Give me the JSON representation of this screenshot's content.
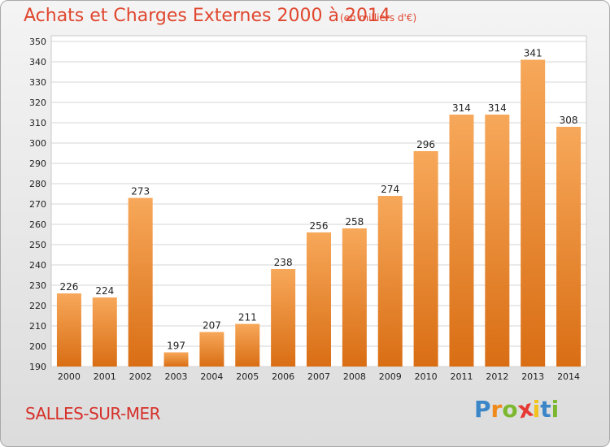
{
  "header": {
    "title": "Achats et Charges Externes 2000 à 2014",
    "unit": "(en milliers d'€)"
  },
  "footer": {
    "place": "SALLES-SUR-MER",
    "logo": {
      "letters": [
        "P",
        "r",
        "o",
        "x",
        "i",
        "t",
        "i"
      ],
      "colors": [
        "#3a86c8",
        "#f08a1c",
        "#7cb82f",
        "#e53935",
        "#f3c31a",
        "#3a86c8",
        "#7cb82f"
      ]
    }
  },
  "colors": {
    "bar_light": "#f7a85a",
    "bar_dark": "#d96e14",
    "title": "#e0472f"
  },
  "chart_data": {
    "type": "bar",
    "title": "Achats et Charges Externes 2000 à 2014",
    "subtitle": "(en milliers d'€)",
    "categories": [
      "2000",
      "2001",
      "2002",
      "2003",
      "2004",
      "2005",
      "2006",
      "2007",
      "2008",
      "2009",
      "2010",
      "2011",
      "2012",
      "2013",
      "2014"
    ],
    "values": [
      226,
      224,
      273,
      197,
      207,
      211,
      238,
      256,
      258,
      274,
      296,
      314,
      314,
      341,
      308
    ],
    "ylim": [
      190,
      350
    ],
    "yticks": [
      190,
      200,
      210,
      220,
      230,
      240,
      250,
      260,
      270,
      280,
      290,
      300,
      310,
      320,
      330,
      340,
      350
    ],
    "grid": true,
    "xlabel": "",
    "ylabel": ""
  }
}
